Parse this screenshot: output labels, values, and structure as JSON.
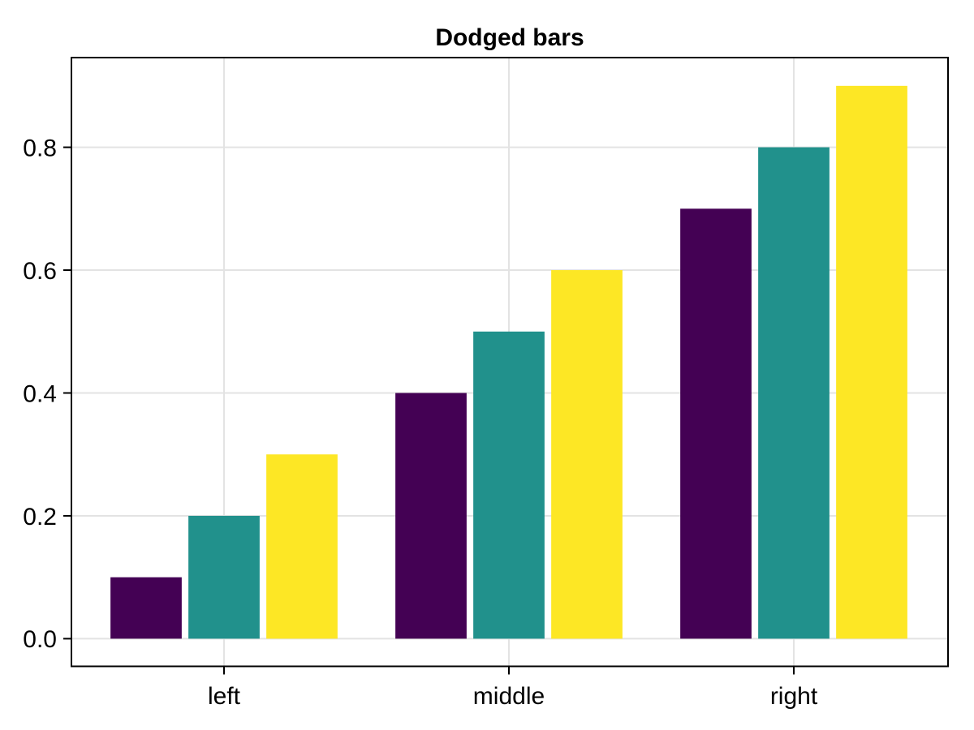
{
  "chart_data": {
    "type": "bar",
    "bar_mode": "dodged",
    "title": "Dodged bars",
    "xlabel": "",
    "ylabel": "",
    "categories": [
      "left",
      "middle",
      "right"
    ],
    "series": [
      {
        "color": "#440154",
        "values": [
          0.1,
          0.4,
          0.7
        ]
      },
      {
        "color": "#21918c",
        "values": [
          0.2,
          0.5,
          0.8
        ]
      },
      {
        "color": "#fde725",
        "values": [
          0.3,
          0.6,
          0.9
        ]
      }
    ],
    "yticks": [
      {
        "label": "0.0",
        "value": 0.0
      },
      {
        "label": "0.2",
        "value": 0.2
      },
      {
        "label": "0.4",
        "value": 0.4
      },
      {
        "label": "0.6",
        "value": 0.6
      },
      {
        "label": "0.8",
        "value": 0.8
      }
    ],
    "ylim": [
      -0.045,
      0.946
    ],
    "xlim": [
      0.4644,
      3.5413
    ],
    "grid": true,
    "legend": "none"
  },
  "style": {
    "background": "#ffffff",
    "plot_background": "#ffffff",
    "grid_color": "#e3e3e3",
    "spine_color": "#000000",
    "tick_color": "#000000",
    "text_color": "#000000"
  }
}
